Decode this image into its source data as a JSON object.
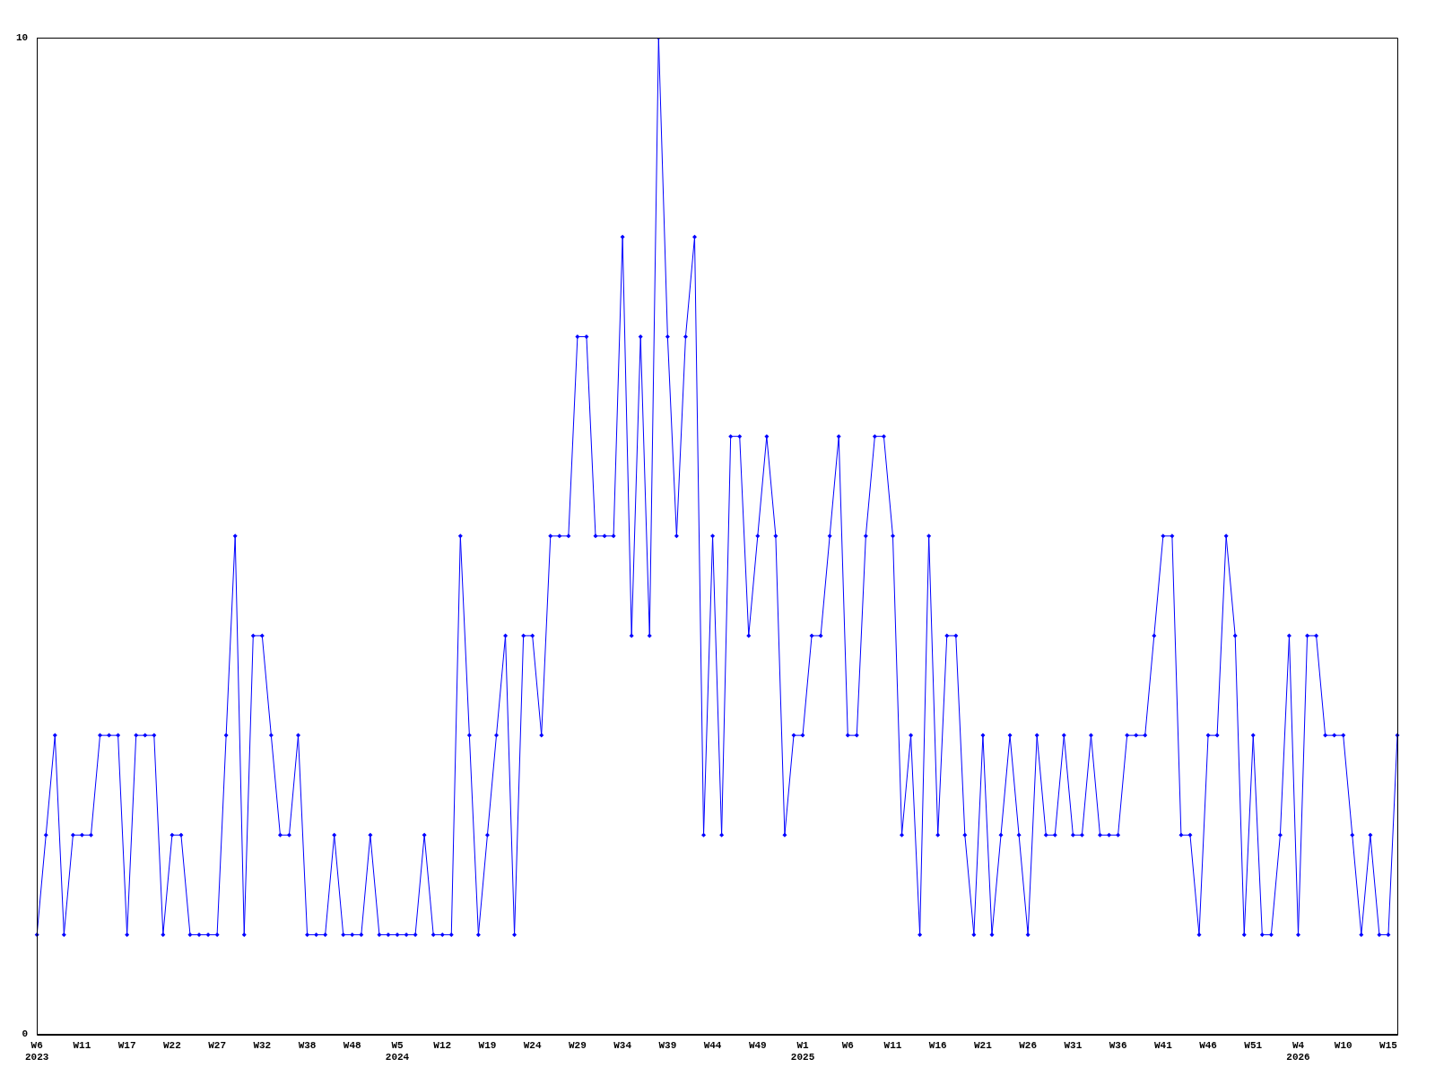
{
  "chart_data": {
    "type": "line",
    "categories": [
      "W6\n2023",
      null,
      null,
      null,
      null,
      "W11",
      null,
      null,
      null,
      null,
      "W17",
      null,
      null,
      null,
      null,
      "W22",
      null,
      null,
      null,
      null,
      "W27",
      null,
      null,
      null,
      null,
      "W32",
      null,
      null,
      null,
      null,
      "W38",
      null,
      null,
      null,
      null,
      "W48",
      null,
      null,
      null,
      null,
      "W5\n2024",
      null,
      null,
      null,
      null,
      "W12",
      null,
      null,
      null,
      null,
      "W19",
      null,
      null,
      null,
      null,
      "W24",
      null,
      null,
      null,
      null,
      "W29",
      null,
      null,
      null,
      null,
      "W34",
      null,
      null,
      null,
      null,
      "W39",
      null,
      null,
      null,
      null,
      "W44",
      null,
      null,
      null,
      null,
      "W49",
      null,
      null,
      null,
      null,
      "W1\n2025",
      null,
      null,
      null,
      null,
      "W6",
      null,
      null,
      null,
      null,
      "W11",
      null,
      null,
      null,
      null,
      "W16",
      null,
      null,
      null,
      null,
      "W21",
      null,
      null,
      null,
      null,
      "W26",
      null,
      null,
      null,
      null,
      "W31",
      null,
      null,
      null,
      null,
      "W36",
      null,
      null,
      null,
      null,
      "W41",
      null,
      null,
      null,
      null,
      "W46",
      null,
      null,
      null,
      null,
      "W51",
      null,
      null,
      null,
      null,
      "W4\n2026",
      null,
      null,
      null,
      null,
      "W10",
      null,
      null,
      null,
      null,
      "W15",
      null
    ],
    "series": [
      {
        "color": "#0000ff",
        "values": [
          1,
          2,
          3,
          1,
          2,
          2,
          2,
          3,
          3,
          3,
          1,
          3,
          3,
          3,
          1,
          2,
          2,
          1,
          1,
          1,
          1,
          3,
          5,
          1,
          4,
          4,
          3,
          2,
          2,
          3,
          1,
          1,
          1,
          2,
          1,
          1,
          1,
          2,
          1,
          1,
          1,
          1,
          1,
          2,
          1,
          1,
          1,
          5,
          3,
          1,
          2,
          3,
          4,
          1,
          4,
          4,
          3,
          5,
          5,
          5,
          7,
          7,
          5,
          5,
          5,
          8,
          4,
          7,
          4,
          10,
          7,
          5,
          7,
          8,
          2,
          5,
          2,
          6,
          6,
          4,
          5,
          6,
          5,
          2,
          3,
          3,
          4,
          4,
          5,
          6,
          3,
          3,
          5,
          6,
          6,
          5,
          2,
          3,
          1,
          5,
          2,
          4,
          4,
          2,
          1,
          3,
          1,
          2,
          3,
          2,
          1,
          3,
          2,
          2,
          3,
          2,
          2,
          3,
          2,
          2,
          2,
          3,
          3,
          3,
          4,
          5,
          5,
          2,
          2,
          1,
          3,
          3,
          5,
          4,
          1,
          3,
          1,
          1,
          2,
          4,
          1,
          4,
          4,
          3,
          3,
          3,
          2,
          1,
          2,
          1,
          1,
          3
        ]
      }
    ],
    "ylim": [
      0,
      10
    ],
    "yticks": [
      0,
      10
    ],
    "grid": false,
    "legend": false,
    "marker": "diamond",
    "line_style": "solid"
  }
}
